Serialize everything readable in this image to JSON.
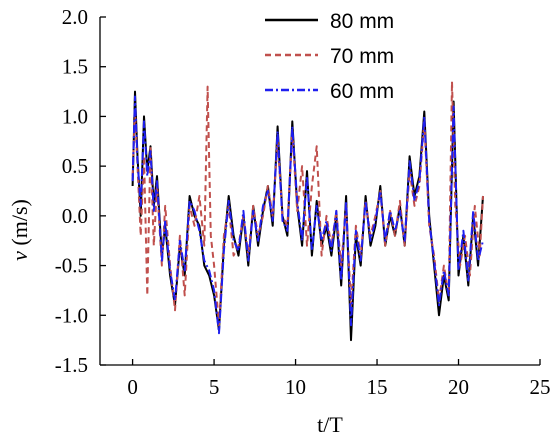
{
  "chart_data": {
    "type": "line",
    "xlabel": "t/T",
    "ylabel_italic": "v",
    "ylabel_unit": " (m/s)",
    "xlim": [
      -2,
      25
    ],
    "ylim": [
      -1.5,
      2.0
    ],
    "xticks": [
      0,
      5,
      10,
      15,
      20,
      25
    ],
    "yticks": [
      2.0,
      1.5,
      1.0,
      0.5,
      0.0,
      -0.5,
      -1.0,
      -1.5
    ],
    "xtick_labels": [
      "0",
      "5",
      "10",
      "15",
      "20",
      "25"
    ],
    "ytick_labels": [
      "2.0",
      "1.5",
      "1.0",
      "0.5",
      "0.0",
      "-0.5",
      "-1.0",
      "-1.5"
    ],
    "grid": false,
    "legend_position": "top-right",
    "series": [
      {
        "name": "80 mm",
        "color": "#000000",
        "dash": "solid",
        "x": [
          0.0,
          0.15,
          0.3,
          0.5,
          0.7,
          0.9,
          1.1,
          1.3,
          1.5,
          1.8,
          2.0,
          2.3,
          2.6,
          2.9,
          3.2,
          3.5,
          3.8,
          4.1,
          4.4,
          4.7,
          5.0,
          5.3,
          5.6,
          5.9,
          6.2,
          6.5,
          6.8,
          7.1,
          7.4,
          7.7,
          8.0,
          8.3,
          8.6,
          8.9,
          9.2,
          9.5,
          9.8,
          10.1,
          10.4,
          10.7,
          11.0,
          11.3,
          11.6,
          11.9,
          12.2,
          12.5,
          12.8,
          13.1,
          13.4,
          13.7,
          14.0,
          14.3,
          14.6,
          14.9,
          15.2,
          15.5,
          15.8,
          16.1,
          16.4,
          16.7,
          17.0,
          17.3,
          17.6,
          17.9,
          18.2,
          18.5,
          18.8,
          19.1,
          19.4,
          19.7,
          20.0,
          20.3,
          20.6,
          20.9,
          21.2,
          21.5
        ],
        "y": [
          0.3,
          1.25,
          0.6,
          0.0,
          1.0,
          0.45,
          0.7,
          0.1,
          0.4,
          -0.4,
          -0.1,
          -0.6,
          -0.9,
          -0.3,
          -0.6,
          0.2,
          0.0,
          -0.1,
          -0.5,
          -0.6,
          -0.8,
          -1.15,
          -0.3,
          0.2,
          -0.2,
          -0.4,
          0.0,
          -0.5,
          0.1,
          -0.3,
          0.05,
          0.3,
          -0.1,
          0.9,
          0.0,
          -0.2,
          0.95,
          0.1,
          -0.3,
          0.45,
          -0.4,
          0.15,
          -0.3,
          -0.1,
          -0.4,
          0.0,
          -0.7,
          0.2,
          -1.25,
          -0.2,
          -0.5,
          0.2,
          -0.3,
          -0.1,
          0.3,
          -0.3,
          0.0,
          -0.2,
          0.1,
          -0.3,
          0.6,
          0.2,
          0.4,
          1.05,
          0.0,
          -0.5,
          -1.0,
          -0.6,
          -0.85,
          1.15,
          -0.6,
          -0.2,
          -0.7,
          0.0,
          -0.5,
          0.2
        ]
      },
      {
        "name": "70 mm",
        "color": "#c0504d",
        "dash": "6,4",
        "x": [
          0.0,
          0.15,
          0.3,
          0.5,
          0.7,
          0.9,
          1.1,
          1.3,
          1.5,
          1.8,
          2.0,
          2.3,
          2.6,
          2.9,
          3.2,
          3.5,
          3.8,
          4.1,
          4.4,
          4.6,
          4.8,
          5.0,
          5.3,
          5.6,
          5.9,
          6.2,
          6.5,
          6.8,
          7.1,
          7.4,
          7.7,
          8.0,
          8.3,
          8.6,
          8.9,
          9.2,
          9.5,
          9.8,
          10.1,
          10.4,
          10.7,
          11.0,
          11.3,
          11.6,
          11.9,
          12.2,
          12.5,
          12.8,
          13.1,
          13.4,
          13.7,
          14.0,
          14.3,
          14.6,
          14.9,
          15.2,
          15.5,
          15.8,
          16.1,
          16.4,
          16.7,
          17.0,
          17.3,
          17.6,
          17.9,
          18.2,
          18.5,
          18.8,
          19.1,
          19.4,
          19.6,
          19.8,
          20.1,
          20.4,
          20.7,
          21.0,
          21.3,
          21.5
        ],
        "y": [
          0.4,
          1.05,
          0.5,
          -0.2,
          0.6,
          -0.8,
          0.7,
          -0.3,
          0.3,
          -0.5,
          0.1,
          -0.5,
          -0.95,
          -0.2,
          -0.8,
          0.1,
          -0.1,
          0.2,
          -0.3,
          1.3,
          -0.2,
          -0.5,
          -1.1,
          -0.2,
          0.1,
          -0.4,
          -0.3,
          0.0,
          -0.4,
          0.1,
          -0.2,
          0.0,
          0.3,
          0.0,
          0.75,
          0.0,
          -0.1,
          0.85,
          0.05,
          0.5,
          -0.3,
          0.3,
          0.7,
          -0.4,
          0.0,
          -0.3,
          0.05,
          -0.5,
          0.1,
          -0.9,
          -0.1,
          -0.4,
          0.15,
          -0.2,
          0.0,
          0.25,
          -0.3,
          0.05,
          -0.2,
          0.15,
          -0.3,
          0.45,
          0.1,
          0.3,
          0.95,
          -0.1,
          -0.4,
          -0.85,
          -0.5,
          -0.8,
          1.35,
          0.1,
          -0.5,
          -0.2,
          -0.6,
          0.1,
          -0.4,
          0.2
        ]
      },
      {
        "name": "60 mm",
        "color": "#1f1ff0",
        "dash": "8,3,2,3",
        "x": [
          0.0,
          0.15,
          0.3,
          0.5,
          0.7,
          0.9,
          1.1,
          1.3,
          1.5,
          1.8,
          2.0,
          2.3,
          2.6,
          2.9,
          3.2,
          3.5,
          3.8,
          4.1,
          4.4,
          4.7,
          5.0,
          5.3,
          5.6,
          5.9,
          6.2,
          6.5,
          6.8,
          7.1,
          7.4,
          7.7,
          8.0,
          8.3,
          8.6,
          8.9,
          9.2,
          9.5,
          9.8,
          10.1,
          10.4,
          10.7,
          11.0,
          11.3,
          11.6,
          11.9,
          12.2,
          12.5,
          12.8,
          13.1,
          13.4,
          13.7,
          14.0,
          14.3,
          14.6,
          14.9,
          15.2,
          15.5,
          15.8,
          16.1,
          16.4,
          16.7,
          17.0,
          17.3,
          17.6,
          17.9,
          18.2,
          18.5,
          18.8,
          19.1,
          19.4,
          19.7,
          20.0,
          20.3,
          20.6,
          20.9,
          21.2,
          21.5
        ],
        "y": [
          0.35,
          1.2,
          0.55,
          0.1,
          0.95,
          0.4,
          0.65,
          0.05,
          0.35,
          -0.45,
          -0.05,
          -0.55,
          -0.85,
          -0.25,
          -0.55,
          0.15,
          0.05,
          -0.15,
          -0.45,
          -0.55,
          -0.75,
          -1.18,
          -0.35,
          0.15,
          -0.25,
          -0.35,
          0.05,
          -0.45,
          0.05,
          -0.25,
          0.1,
          0.25,
          -0.05,
          0.85,
          -0.05,
          -0.15,
          0.9,
          0.15,
          -0.25,
          0.4,
          -0.35,
          0.1,
          -0.25,
          -0.05,
          -0.35,
          0.05,
          -0.65,
          0.15,
          -1.1,
          -0.15,
          -0.45,
          0.15,
          -0.25,
          -0.05,
          0.25,
          -0.25,
          0.05,
          -0.15,
          0.05,
          -0.25,
          0.55,
          0.15,
          0.35,
          1.0,
          -0.05,
          -0.45,
          -0.9,
          -0.55,
          -0.8,
          1.1,
          -0.55,
          -0.15,
          -0.65,
          0.05,
          -0.45,
          -0.25
        ]
      }
    ]
  }
}
